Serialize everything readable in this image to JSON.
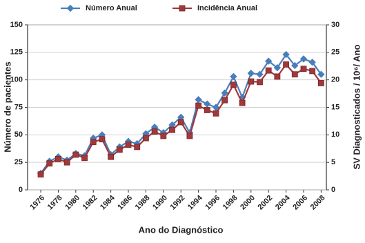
{
  "chart_data": {
    "type": "line",
    "x_label": "Ano do Diagnóstico",
    "y_label": "Número de pacientes",
    "y2_label": "SV Diagnosticados / 10⁶/ Ano",
    "x": [
      1976,
      1977,
      1978,
      1979,
      1980,
      1981,
      1982,
      1983,
      1984,
      1985,
      1986,
      1987,
      1988,
      1989,
      1990,
      1991,
      1992,
      1993,
      1994,
      1995,
      1996,
      1997,
      1998,
      1999,
      2000,
      2001,
      2002,
      2003,
      2004,
      2005,
      2006,
      2007,
      2008
    ],
    "xlim": [
      1974.5,
      2008.6
    ],
    "xticks": [
      1976,
      1978,
      1980,
      1982,
      1984,
      1986,
      1988,
      1990,
      1992,
      1994,
      1996,
      1998,
      2000,
      2002,
      2004,
      2006,
      2008
    ],
    "ylim": [
      0,
      150
    ],
    "yticks": [
      0,
      25,
      50,
      75,
      100,
      125,
      150
    ],
    "y2lim": [
      0,
      30
    ],
    "y2ticks": [
      0,
      5,
      10,
      15,
      20,
      25,
      30
    ],
    "grid": true,
    "legend": "top",
    "series": [
      {
        "name": "Número Anual",
        "color": "#4a7ebb",
        "marker": "diamond",
        "values": [
          15,
          26,
          30,
          27,
          33,
          31,
          47,
          50,
          32,
          39,
          44,
          42,
          51,
          57,
          52,
          59,
          66,
          52,
          82,
          78,
          75,
          88,
          103,
          84,
          106,
          105,
          117,
          111,
          123,
          113,
          119,
          116,
          105
        ]
      },
      {
        "name": "Incidência Anual",
        "color": "#a0393b",
        "marker": "square",
        "axis": "y2",
        "values": [
          2.8,
          4.8,
          5.6,
          5.0,
          6.4,
          5.8,
          8.7,
          9.2,
          6.0,
          7.3,
          8.2,
          7.8,
          9.4,
          10.6,
          9.8,
          10.9,
          12.3,
          9.8,
          15.3,
          14.5,
          13.9,
          16.3,
          19.1,
          15.8,
          19.7,
          19.6,
          21.7,
          20.6,
          22.8,
          21.0,
          22.0,
          21.6,
          19.4
        ]
      }
    ]
  }
}
